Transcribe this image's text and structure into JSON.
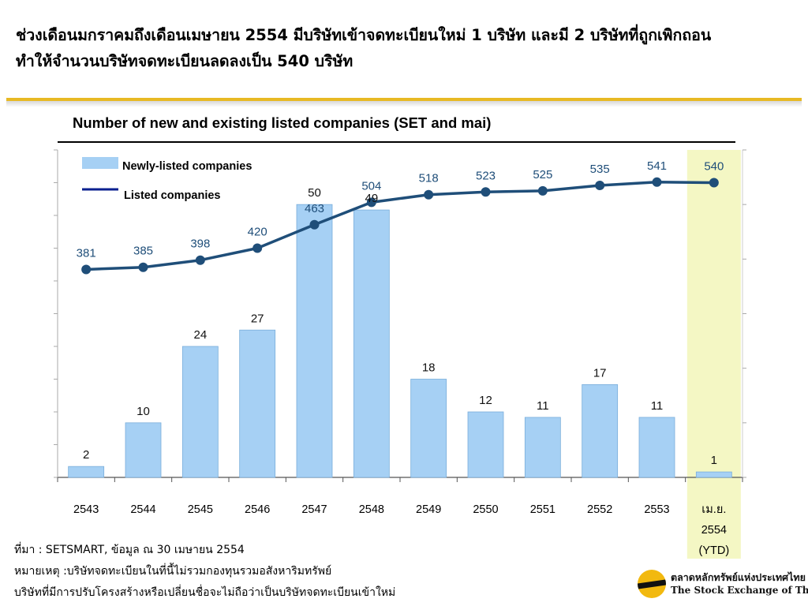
{
  "headline": {
    "line1_plain": "ช่วงเดือนมกราคมถึงเดือนเมษายน 2554 ",
    "line1_accent": "มีบริษัทเข้าจดทะเบียนใหม่ 1 บริษัท และมี 2 บริษัทที่ถูกเพิกถอน",
    "line2": "ทำให้จำนวนบริษัทจดทะเบียนลดลงเป็น 540 บริษัท"
  },
  "chart_data": {
    "type": "bar",
    "title": "Number of new and existing listed companies (SET and mai)",
    "categories": [
      "2543",
      "2544",
      "2545",
      "2546",
      "2547",
      "2548",
      "2549",
      "2550",
      "2551",
      "2552",
      "2553",
      "เม.ย. 2554 (YTD)"
    ],
    "category_lines": [
      [
        "2543"
      ],
      [
        "2544"
      ],
      [
        "2545"
      ],
      [
        "2546"
      ],
      [
        "2547"
      ],
      [
        "2548"
      ],
      [
        "2549"
      ],
      [
        "2550"
      ],
      [
        "2551"
      ],
      [
        "2552"
      ],
      [
        "2553"
      ],
      [
        "เม.ย.",
        "2554",
        "(YTD)"
      ]
    ],
    "series": [
      {
        "name": "Newly-listed companies",
        "type": "bar",
        "values": [
          2,
          10,
          24,
          27,
          50,
          49,
          18,
          12,
          11,
          17,
          11,
          1
        ],
        "color": "#a6d0f4"
      },
      {
        "name": "Listed companies",
        "type": "line",
        "values": [
          381,
          385,
          398,
          420,
          463,
          504,
          518,
          523,
          525,
          535,
          541,
          540
        ],
        "color": "#1f4e79"
      }
    ],
    "bar_ylim": [
      0,
      60
    ],
    "line_ylim": [
      0,
      600
    ],
    "legend_position": "top-left",
    "highlight_category": "เม.ย. 2554 (YTD)",
    "highlight_color": "#f4f7c4",
    "legend_line_color": "#0a1f8f"
  },
  "footnotes": {
    "source": "ที่มา : SETSMART, ข้อมูล ณ 30 เมษายน 2554",
    "note1": "หมายเหตุ :บริษัทจดทะเบียนในที่นี้ไม่รวมกองทุนรวมอสังหาริมทรัพย์",
    "note2": "บริษัทที่มีการปรับโครงสร้างหรือเปลี่ยนชื่อจะไม่ถือว่าเป็นบริษัทจดทะเบียนเข้าใหม่"
  },
  "logo": {
    "name_th": "ตลาดหลักทรัพย์แห่งประเทศไทย",
    "name_en": "The Stock Exchange of Thailand"
  }
}
